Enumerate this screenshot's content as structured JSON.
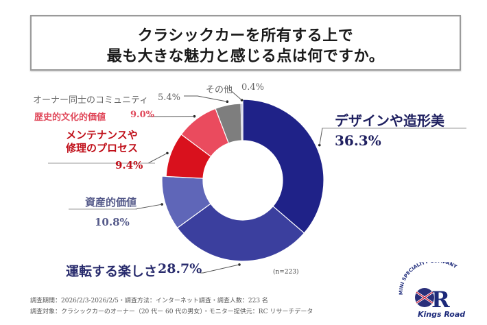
{
  "title": {
    "line1": "クラシックカーを所有する上で",
    "line2": "最も大きな魅力と感じる点は何ですか。"
  },
  "chart_data": {
    "type": "pie",
    "variant": "donut",
    "title": "クラシックカーを所有する上で最も大きな魅力と感じる点は何ですか。",
    "start": "12 o'clock, clockwise",
    "slices": [
      {
        "label": "デザインや造形美",
        "value": 36.3,
        "value_label": "36.3%",
        "color": "#1f2288"
      },
      {
        "label": "運転する楽しさ",
        "value": 28.7,
        "value_label": "28.7%",
        "color": "#3b3f9e"
      },
      {
        "label": "資産的価値",
        "value": 10.8,
        "value_label": "10.8%",
        "color": "#5f66b8"
      },
      {
        "label_line1": "メンテナンスや",
        "label_line2": "修理のプロセス",
        "label": "メンテナンスや修理のプロセス",
        "value": 9.4,
        "value_label": "9.4%",
        "color": "#d9111d"
      },
      {
        "label": "歴史的文化的価値",
        "value": 9.0,
        "value_label": "9.0%",
        "color": "#ea4b5e"
      },
      {
        "label": "オーナー同士のコミュニティ",
        "value": 5.4,
        "value_label": "5.4%",
        "color": "#7e7e7e"
      },
      {
        "label": "その他",
        "value": 0.4,
        "value_label": "0.4%",
        "color": "#b9bbd8"
      }
    ],
    "n_note": "(n=223)"
  },
  "label_colors": {
    "design": "#1f2060",
    "driving": "#2a2d6e",
    "asset": "#555a8a",
    "maintenance": "#c0101a",
    "history": "#e0485a",
    "community": "#666666",
    "other": "#666666"
  },
  "footer": {
    "line1": "調査期間：2026/2/3-2026/2/5・調査方法：インターネット調査・調査人数：223 名",
    "line2": "調査対象：クラシックカーのオーナー（20 代ー 60 代の男女）・モニター提供元：RC リサーチデータ"
  },
  "logo": {
    "arc_text": "MINI SPECIALITY COMPANY",
    "letter": "R",
    "name": "Kings Road"
  }
}
